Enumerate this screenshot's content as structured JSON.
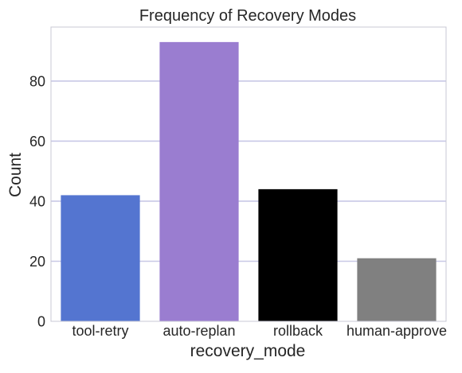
{
  "chart_data": {
    "type": "bar",
    "title": "Frequency of Recovery Modes",
    "xlabel": "recovery_mode",
    "ylabel": "Count",
    "categories": [
      "tool-retry",
      "auto-replan",
      "rollback",
      "human-approve"
    ],
    "values": [
      42,
      93,
      44,
      21
    ],
    "bar_colors": [
      "#5475d0",
      "#9a7dd0",
      "#000000",
      "#808080"
    ],
    "ylim": [
      0,
      98
    ],
    "yticks": [
      0,
      20,
      40,
      60,
      80
    ],
    "grid": true,
    "grid_color": "#c8c8e6",
    "legend": "none"
  }
}
